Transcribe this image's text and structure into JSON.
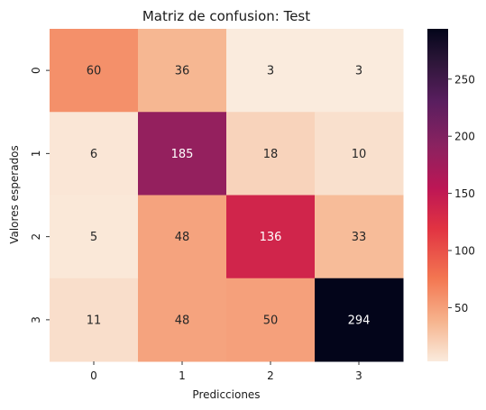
{
  "chart_data": {
    "type": "heatmap",
    "title": "Matriz de confusion: Test",
    "xlabel": "Predicciones",
    "ylabel": "Valores esperados",
    "x_categories": [
      "0",
      "1",
      "2",
      "3"
    ],
    "y_categories": [
      "0",
      "1",
      "2",
      "3"
    ],
    "values": [
      [
        60,
        36,
        3,
        3
      ],
      [
        6,
        185,
        18,
        10
      ],
      [
        5,
        48,
        136,
        33
      ],
      [
        11,
        48,
        50,
        294
      ]
    ],
    "colorbar": {
      "min": 3,
      "max": 294,
      "ticks": [
        "50",
        "100",
        "150",
        "200",
        "250"
      ],
      "tick_values": [
        50,
        100,
        150,
        200,
        250
      ],
      "colormap": "rocket_r"
    },
    "grid": false,
    "legend": "colorbar-right"
  }
}
